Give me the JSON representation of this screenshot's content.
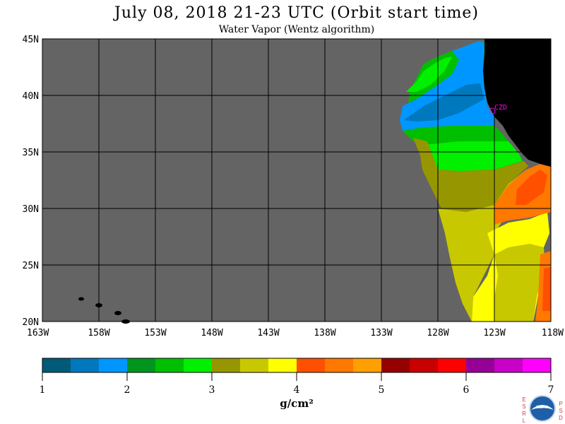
{
  "title": "July 08, 2018  21-23 UTC  (Orbit start time)",
  "subtitle": "Water Vapor (Wentz algorithm)",
  "map": {
    "lat_range": [
      20,
      45
    ],
    "lon_range": [
      -163,
      -118
    ],
    "lat_ticks": [
      "45N",
      "40N",
      "35N",
      "30N",
      "25N",
      "20N"
    ],
    "lon_ticks": [
      "163W",
      "158W",
      "153W",
      "148W",
      "143W",
      "138W",
      "133W",
      "128W",
      "123W",
      "118W"
    ],
    "station_label": "CZD",
    "colors": {
      "no_data": "#646464",
      "land": "#000000",
      "grid": "#000000",
      "station": "#ff00ff"
    }
  },
  "colorbar": {
    "min": 1,
    "max": 7,
    "tick_labels": [
      "1",
      "2",
      "3",
      "4",
      "5",
      "6",
      "7"
    ],
    "units": "g/cm²",
    "colors": [
      "#005a78",
      "#0078be",
      "#0096ff",
      "#00961e",
      "#00be00",
      "#00f000",
      "#969600",
      "#c8c800",
      "#ffff00",
      "#ff5000",
      "#ff7800",
      "#ffa000",
      "#960000",
      "#c80000",
      "#ff0000",
      "#960096",
      "#c800c8",
      "#ff00ff"
    ]
  },
  "logo": {
    "left_letters": [
      "E",
      "S",
      "R",
      "L"
    ],
    "right_letters": [
      "P",
      "S",
      "D"
    ],
    "center": "NOAA"
  }
}
